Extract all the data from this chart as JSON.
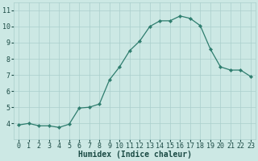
{
  "x": [
    0,
    1,
    2,
    3,
    4,
    5,
    6,
    7,
    8,
    9,
    10,
    11,
    12,
    13,
    14,
    15,
    16,
    17,
    18,
    19,
    20,
    21,
    22,
    23
  ],
  "y": [
    3.9,
    4.0,
    3.85,
    3.85,
    3.75,
    3.95,
    4.95,
    5.0,
    5.2,
    6.7,
    7.5,
    8.5,
    9.1,
    10.0,
    10.35,
    10.35,
    10.65,
    10.5,
    10.05,
    8.6,
    7.5,
    7.3,
    7.3,
    6.9
  ],
  "line_color": "#2e7d6e",
  "marker": "D",
  "marker_size": 2.2,
  "background_color": "#cce8e4",
  "grid_color": "#aacfcc",
  "xlabel": "Humidex (Indice chaleur)",
  "ylabel": "",
  "xlim": [
    -0.5,
    23.5
  ],
  "ylim": [
    3.0,
    11.5
  ],
  "yticks": [
    4,
    5,
    6,
    7,
    8,
    9,
    10,
    11
  ],
  "xticks": [
    0,
    1,
    2,
    3,
    4,
    5,
    6,
    7,
    8,
    9,
    10,
    11,
    12,
    13,
    14,
    15,
    16,
    17,
    18,
    19,
    20,
    21,
    22,
    23
  ],
  "xlabel_fontsize": 7.0,
  "tick_fontsize": 6.0,
  "font_color": "#1a4a44"
}
